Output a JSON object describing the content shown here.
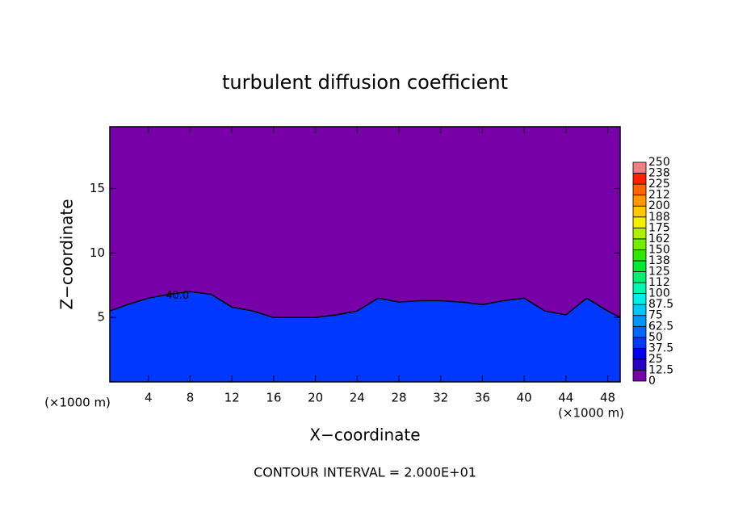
{
  "chart_data": {
    "type": "contour",
    "title": "turbulent diffusion coefficient",
    "x_label": "X−coordinate",
    "y_label": "Z−coordinate",
    "x_unit": "(×1000 m)",
    "y_unit": "(×1000 m)",
    "footer": "CONTOUR INTERVAL = 2.000E+01",
    "xlim": [
      0.3,
      49.2
    ],
    "ylim": [
      0,
      19.8
    ],
    "xticks": [
      4,
      8,
      12,
      16,
      20,
      24,
      28,
      32,
      36,
      40,
      44,
      48
    ],
    "yticks": [
      5,
      10,
      15
    ],
    "background_value": 0,
    "layer": {
      "x": [
        0.3,
        2,
        4,
        6,
        8,
        10,
        12,
        14,
        16,
        18,
        20,
        22,
        24,
        26,
        28,
        30,
        32,
        34,
        36,
        38,
        40,
        42,
        44,
        46,
        48,
        49.2
      ],
      "z_top": [
        5.5,
        6,
        6.5,
        6.8,
        7,
        6.8,
        5.8,
        5.5,
        5,
        5,
        5,
        5.2,
        5.5,
        6.5,
        6.2,
        6.3,
        6.3,
        6.2,
        6,
        6.3,
        6.5,
        5.5,
        5.2,
        6.5,
        5.5,
        5
      ],
      "value": 40,
      "label": "40.0"
    },
    "colorbar": {
      "levels": [
        0,
        12.5,
        25,
        37.5,
        50,
        62.5,
        75,
        87.5,
        100,
        112,
        125,
        138,
        150,
        162,
        175,
        188,
        200,
        212,
        225,
        238,
        250
      ],
      "colors": [
        "#7800a8",
        "#2800c8",
        "#0000f0",
        "#0038ff",
        "#0068ff",
        "#0098ff",
        "#00c8ff",
        "#00f0e8",
        "#00f8b0",
        "#00f070",
        "#00e830",
        "#30e800",
        "#70f000",
        "#b0f000",
        "#f0f000",
        "#ffc800",
        "#ff9800",
        "#ff6400",
        "#ff2000",
        "#f08080"
      ]
    }
  }
}
